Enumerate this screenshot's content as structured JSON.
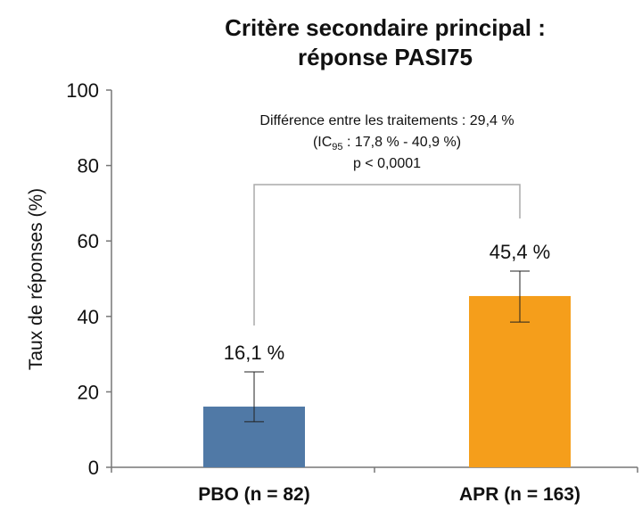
{
  "chart_data": {
    "type": "bar",
    "title": [
      "Critère secondaire principal :",
      "réponse PASI75"
    ],
    "y_label": "Taux de réponses (%)",
    "categories": [
      "PBO (n = 82)",
      "APR (n = 163)"
    ],
    "values": [
      16.1,
      45.4
    ],
    "value_labels": [
      "16,1 %",
      "45,4 %"
    ],
    "errors": [
      [
        12.1,
        25.3
      ],
      [
        38.5,
        52.0
      ]
    ],
    "colors": [
      "#5079a6",
      "#f59e1b"
    ],
    "ylim": [
      0,
      100
    ],
    "yticks": [
      0,
      20,
      40,
      60,
      80,
      100
    ],
    "annotation": [
      "Différence entre les traitements : 29,4 %",
      [
        "(IC",
        "95",
        " : 17,8 % - 40,9 %)"
      ],
      "p < 0,0001"
    ]
  }
}
